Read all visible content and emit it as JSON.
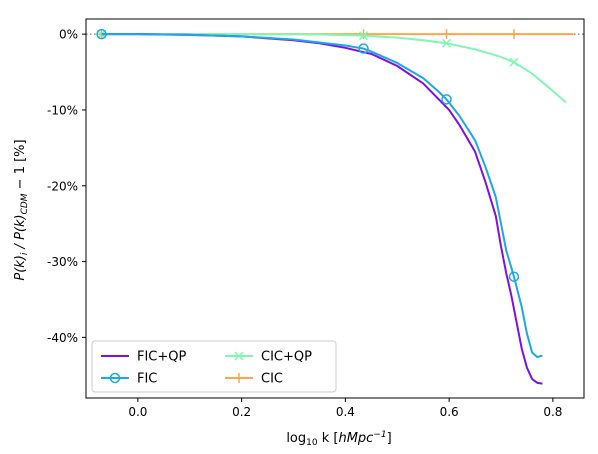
{
  "chart_data": {
    "type": "line",
    "xlabel_parts": [
      "log",
      "10",
      " k [",
      "hMpc",
      "−1",
      "]"
    ],
    "ylabel_parts": [
      "P(k)",
      "i",
      " / P(k)",
      "CDM",
      " − 1 [%]"
    ],
    "xlim": [
      -0.1,
      0.86
    ],
    "ylim": [
      -48,
      2
    ],
    "x_ticks": [
      0.0,
      0.2,
      0.4,
      0.6,
      0.8
    ],
    "x_tick_labels": [
      "0.0",
      "0.2",
      "0.4",
      "0.6",
      "0.8"
    ],
    "y_ticks": [
      0,
      -10,
      -20,
      -30,
      -40
    ],
    "y_tick_labels": [
      "0%",
      "-10%",
      "-20%",
      "-30%",
      "-40%"
    ],
    "reference_line_y": 0,
    "legend_position": "lower-left",
    "series": [
      {
        "name": "FIC+QP",
        "color": "#7f0fe6",
        "marker": "none",
        "x": [
          -0.07,
          0.0,
          0.1,
          0.2,
          0.3,
          0.35,
          0.4,
          0.43,
          0.45,
          0.5,
          0.55,
          0.58,
          0.6,
          0.62,
          0.65,
          0.67,
          0.69,
          0.7,
          0.71,
          0.72,
          0.73,
          0.74,
          0.75,
          0.76,
          0.77,
          0.78
        ],
        "y": [
          0,
          0,
          -0.1,
          -0.3,
          -0.8,
          -1.2,
          -1.8,
          -2.3,
          -2.6,
          -4.2,
          -6.5,
          -8.6,
          -10.0,
          -12.0,
          -15.5,
          -19.5,
          -24.0,
          -28.0,
          -31.5,
          -34.5,
          -38.0,
          -41.5,
          -44.0,
          -45.5,
          -46.0,
          -46.1
        ]
      },
      {
        "name": "FIC",
        "color": "#1aa9e6",
        "marker": "circle",
        "marker_x": [
          -0.07,
          0.435,
          0.595,
          0.725
        ],
        "marker_y": [
          0,
          -1.9,
          -8.6,
          -32.0
        ],
        "x": [
          -0.07,
          0.0,
          0.1,
          0.2,
          0.3,
          0.35,
          0.4,
          0.435,
          0.45,
          0.5,
          0.55,
          0.58,
          0.595,
          0.62,
          0.65,
          0.67,
          0.69,
          0.7,
          0.71,
          0.725,
          0.74,
          0.75,
          0.76,
          0.77,
          0.78
        ],
        "y": [
          0,
          0,
          -0.1,
          -0.3,
          -0.7,
          -1.1,
          -1.5,
          -1.9,
          -2.3,
          -3.8,
          -5.8,
          -7.6,
          -8.6,
          -10.8,
          -14.0,
          -17.5,
          -21.5,
          -25.0,
          -28.5,
          -32.0,
          -36.0,
          -39.5,
          -42.0,
          -42.6,
          -42.4
        ]
      },
      {
        "name": "CIC+QP",
        "color": "#80f7b3",
        "marker": "x",
        "marker_x": [
          -0.07,
          0.435,
          0.595,
          0.725
        ],
        "marker_y": [
          0,
          -0.2,
          -1.2,
          -3.7
        ],
        "x": [
          -0.07,
          0.0,
          0.2,
          0.35,
          0.435,
          0.5,
          0.55,
          0.595,
          0.65,
          0.7,
          0.725,
          0.76,
          0.8,
          0.825
        ],
        "y": [
          0,
          0,
          0,
          -0.05,
          -0.2,
          -0.45,
          -0.8,
          -1.2,
          -2.0,
          -3.0,
          -3.7,
          -5.2,
          -7.5,
          -9.0
        ]
      },
      {
        "name": "CIC",
        "color": "#ffa64d",
        "marker": "plus",
        "marker_x": [
          -0.07,
          0.435,
          0.595,
          0.725
        ],
        "marker_y": [
          0,
          0,
          0,
          0
        ],
        "x": [
          -0.07,
          0.2,
          0.435,
          0.6,
          0.8,
          0.84
        ],
        "y": [
          0,
          0,
          0,
          0,
          0,
          0
        ]
      }
    ]
  }
}
